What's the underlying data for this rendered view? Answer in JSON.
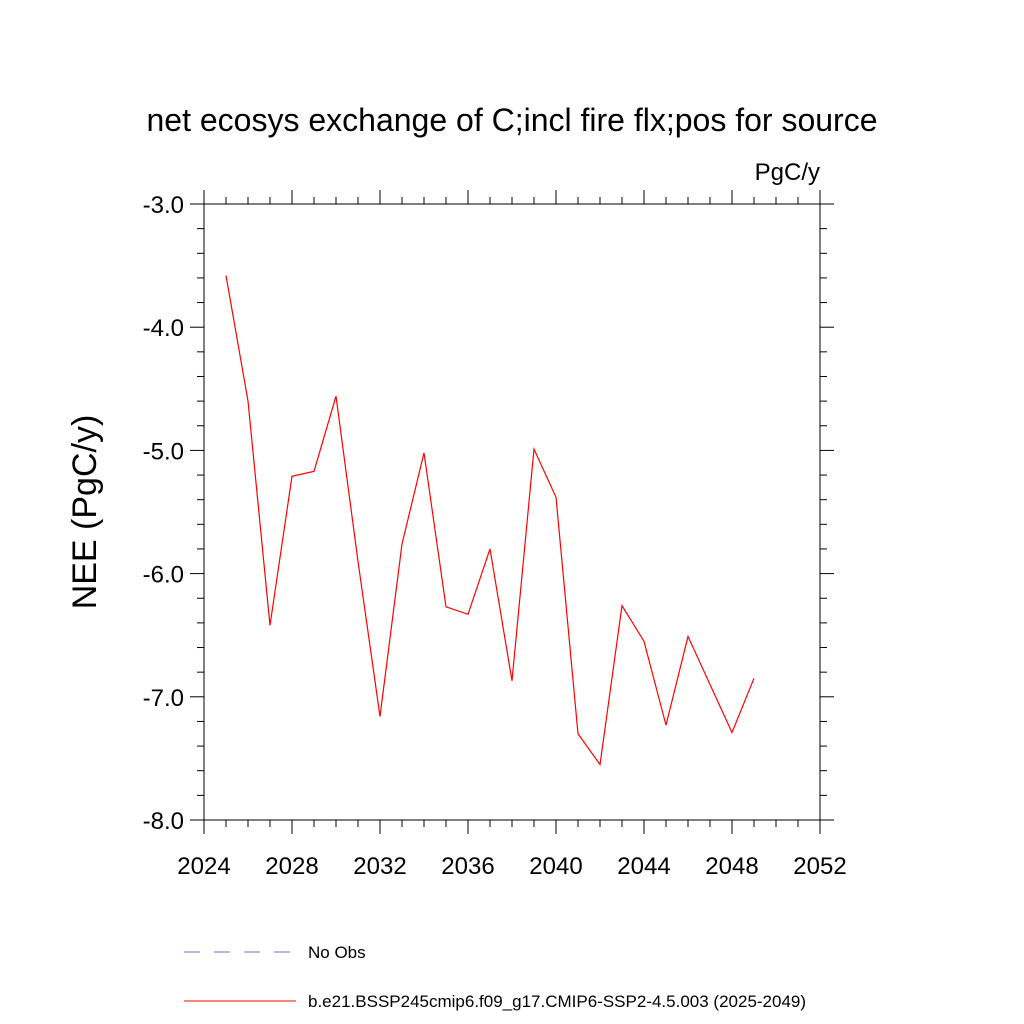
{
  "chart_data": {
    "type": "line",
    "title": "net ecosys exchange of C;incl fire flx;pos for source",
    "units_label": "PgC/y",
    "ylabel": "NEE  (PgC/y)",
    "xlabel": "",
    "xlim": [
      2024,
      2052
    ],
    "ylim": [
      -8.0,
      -3.0
    ],
    "x_ticks": [
      2024,
      2028,
      2032,
      2036,
      2040,
      2044,
      2048,
      2052
    ],
    "x_tick_labels": [
      "2024",
      "2028",
      "2032",
      "2036",
      "2040",
      "2044",
      "2048",
      "2052"
    ],
    "y_ticks": [
      -3.0,
      -4.0,
      -5.0,
      -6.0,
      -7.0,
      -8.0
    ],
    "y_tick_labels": [
      "-3.0",
      "-4.0",
      "-5.0",
      "-6.0",
      "-7.0",
      "-8.0"
    ],
    "grid": false,
    "legend_position": "bottom",
    "legend": [
      {
        "label": "No Obs",
        "color": "#7070c0",
        "style": "dashed"
      },
      {
        "label": "b.e21.BSSP245cmip6.f09_g17.CMIP6-SSP2-4.5.003 (2025-2049)",
        "color": "#ff0000",
        "style": "solid"
      }
    ],
    "series": [
      {
        "name": "b.e21.BSSP245cmip6.f09_g17.CMIP6-SSP2-4.5.003 (2025-2049)",
        "color": "#ff0000",
        "x": [
          2025,
          2026,
          2027,
          2028,
          2029,
          2030,
          2031,
          2032,
          2033,
          2034,
          2035,
          2036,
          2037,
          2038,
          2039,
          2040,
          2041,
          2042,
          2043,
          2044,
          2045,
          2046,
          2047,
          2048,
          2049
        ],
        "y": [
          -3.58,
          -4.6,
          -6.42,
          -5.21,
          -5.17,
          -4.56,
          -5.9,
          -7.16,
          -5.76,
          -5.02,
          -6.27,
          -6.33,
          -5.8,
          -6.87,
          -4.99,
          -5.38,
          -7.3,
          -7.55,
          -6.26,
          -6.55,
          -7.23,
          -6.51,
          -6.9,
          -7.29,
          -6.85
        ]
      }
    ]
  }
}
